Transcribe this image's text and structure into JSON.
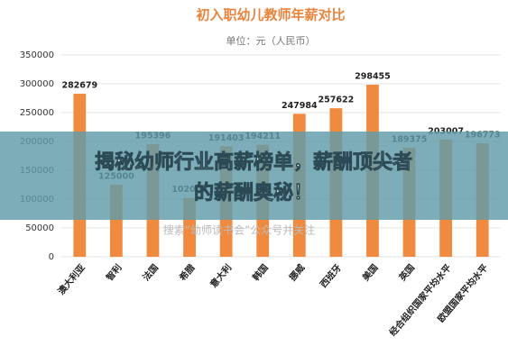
{
  "chart_data": {
    "type": "bar",
    "title": "初入职幼儿教师年薪对比",
    "subtitle": "单位：元（人民币）",
    "watermark": "搜索“幼师读书会”公众号并关注",
    "categories": [
      "澳大利亚",
      "智利",
      "法国",
      "希腊",
      "意大利",
      "韩国",
      "挪威",
      "西班牙",
      "美国",
      "英国",
      "经合组织国家平均水平",
      "欧盟国家平均水平"
    ],
    "values": [
      282679,
      125000,
      195396,
      102000,
      191403,
      194211,
      247984,
      257622,
      298455,
      189375,
      203007,
      196773
    ],
    "color": "#ef8a3e",
    "ylim": [
      0,
      350000
    ],
    "yticks": [
      0,
      50000,
      100000,
      150000,
      200000,
      250000,
      300000,
      350000
    ],
    "grid": true
  },
  "overlay": {
    "lines": [
      "揭秘幼师行业高薪榜单，薪酬顶尖者",
      "的薪酬奥秘！"
    ]
  }
}
